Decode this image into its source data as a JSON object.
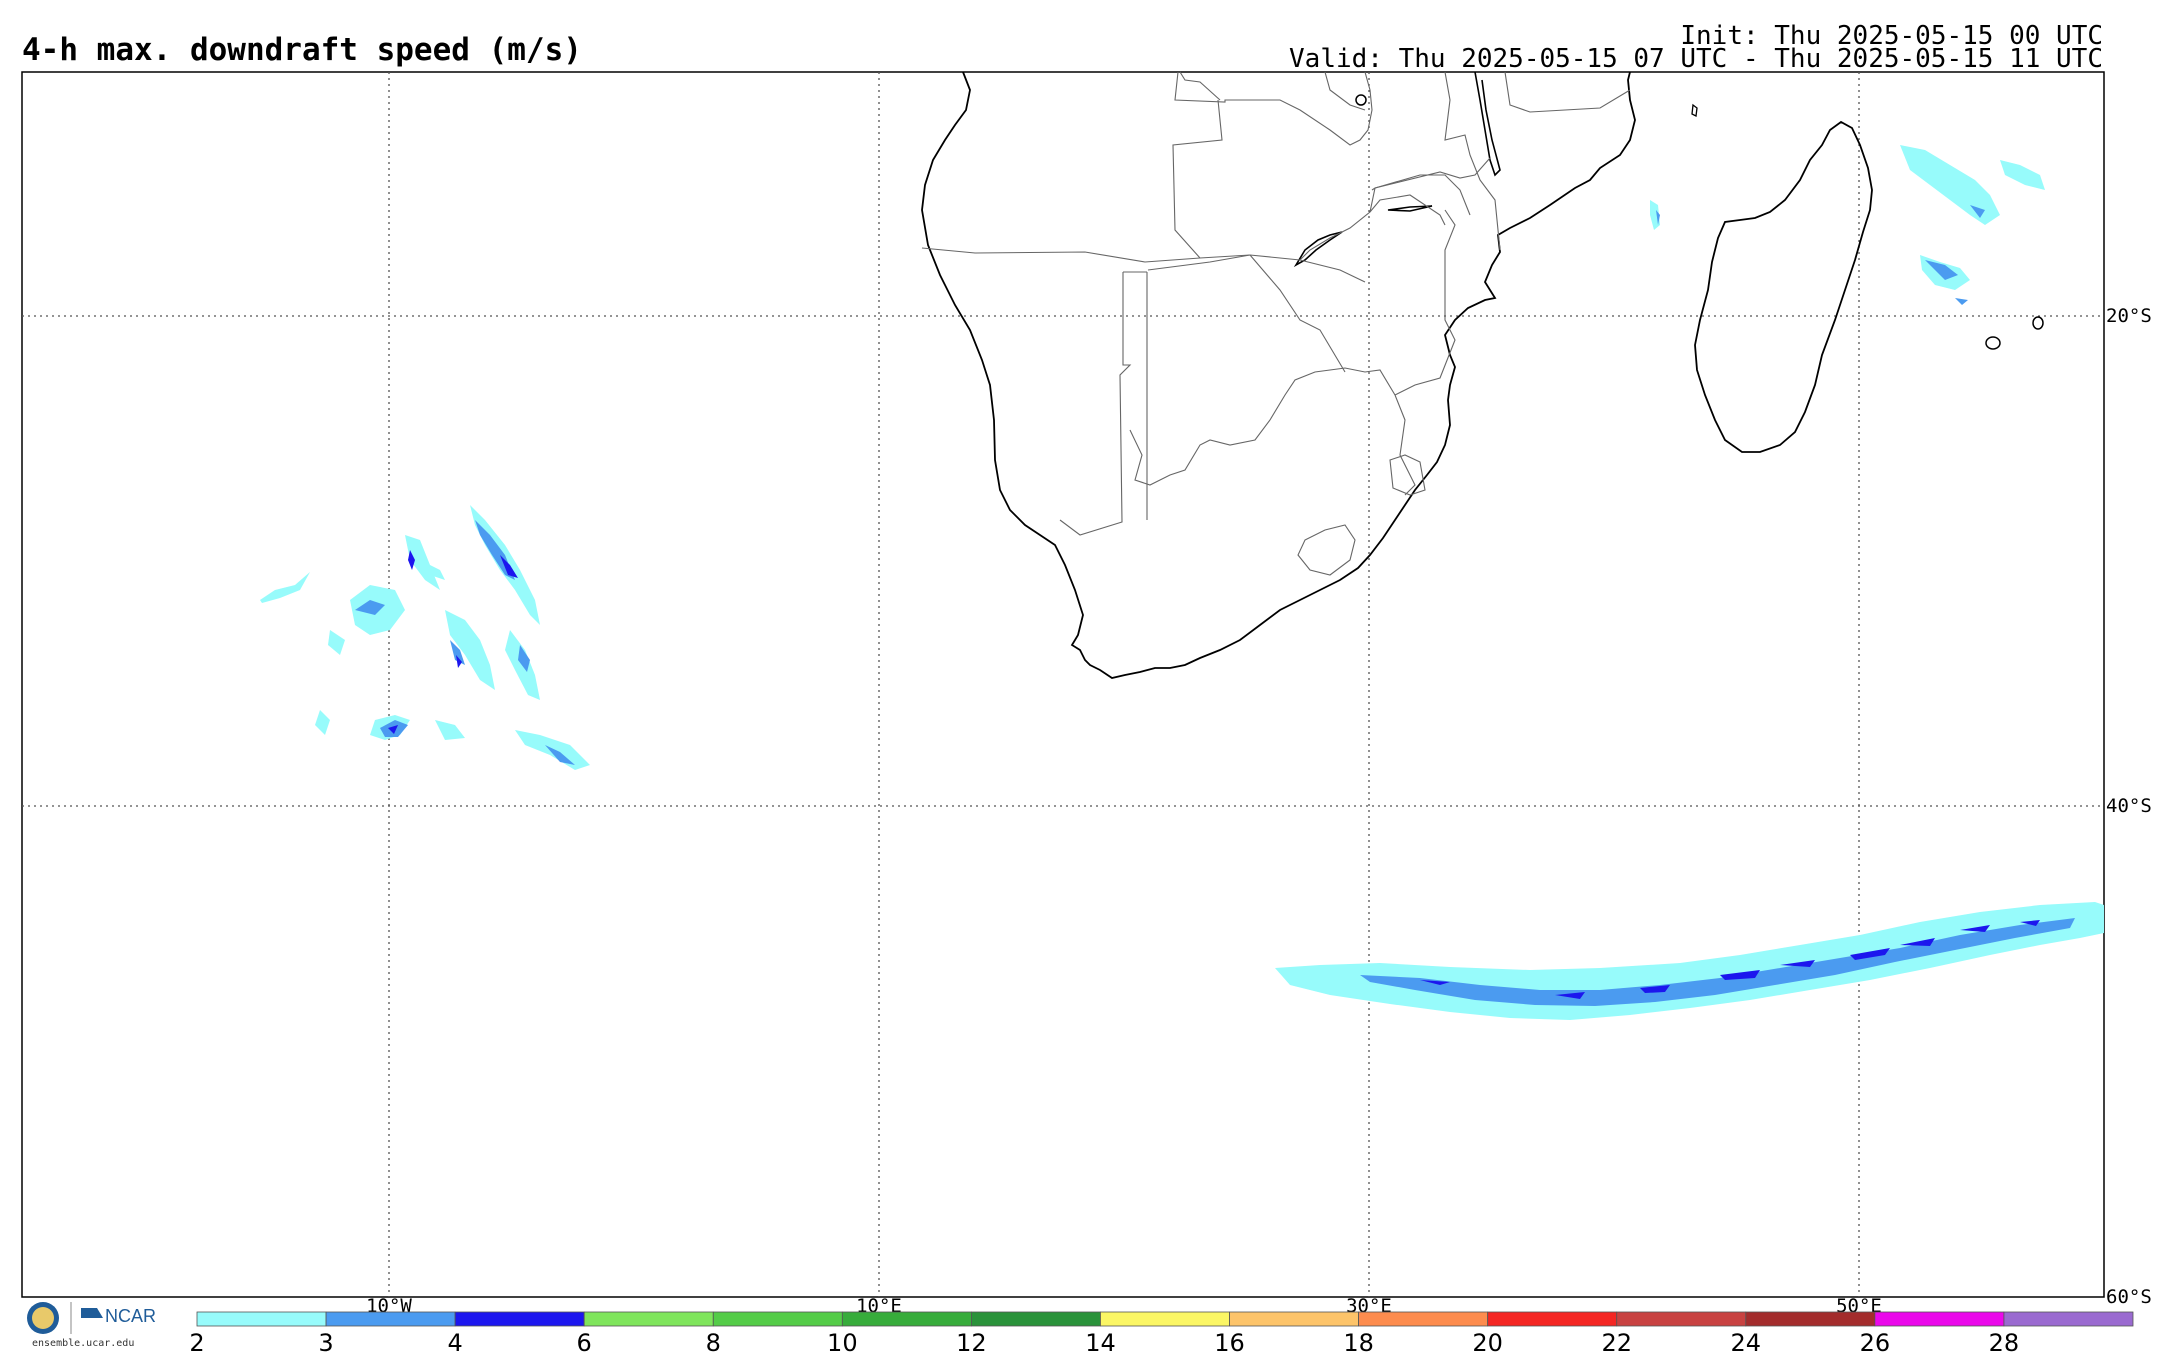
{
  "header": {
    "title": "4-h max. downdraft speed (m/s)",
    "init": "Init: Thu 2025-05-15 00 UTC",
    "valid": "Valid: Thu 2025-05-15 07 UTC - Thu 2025-05-15 11 UTC"
  },
  "map": {
    "lat_labels": [
      "20°S",
      "40°S",
      "60°S"
    ],
    "lon_labels": [
      "10°W",
      "10°E",
      "30°E",
      "50°E"
    ],
    "gridline_style": "dotted"
  },
  "colorbar": {
    "ticks": [
      "2",
      "3",
      "4",
      "6",
      "8",
      "10",
      "12",
      "14",
      "16",
      "18",
      "20",
      "22",
      "24",
      "26",
      "28"
    ],
    "colors": [
      "#97fbfb",
      "#4b9bf0",
      "#1c16ee",
      "#7fe55c",
      "#54cc48",
      "#37ac3b",
      "#2a923a",
      "#fbf665",
      "#fdc46a",
      "#fd8c4e",
      "#f42623",
      "#c84241",
      "#a32c2c",
      "#ea08ea",
      "#9a6ad0"
    ]
  },
  "footer": {
    "logo_text": "NCAR",
    "url": "ensemble.ucar.edu"
  }
}
